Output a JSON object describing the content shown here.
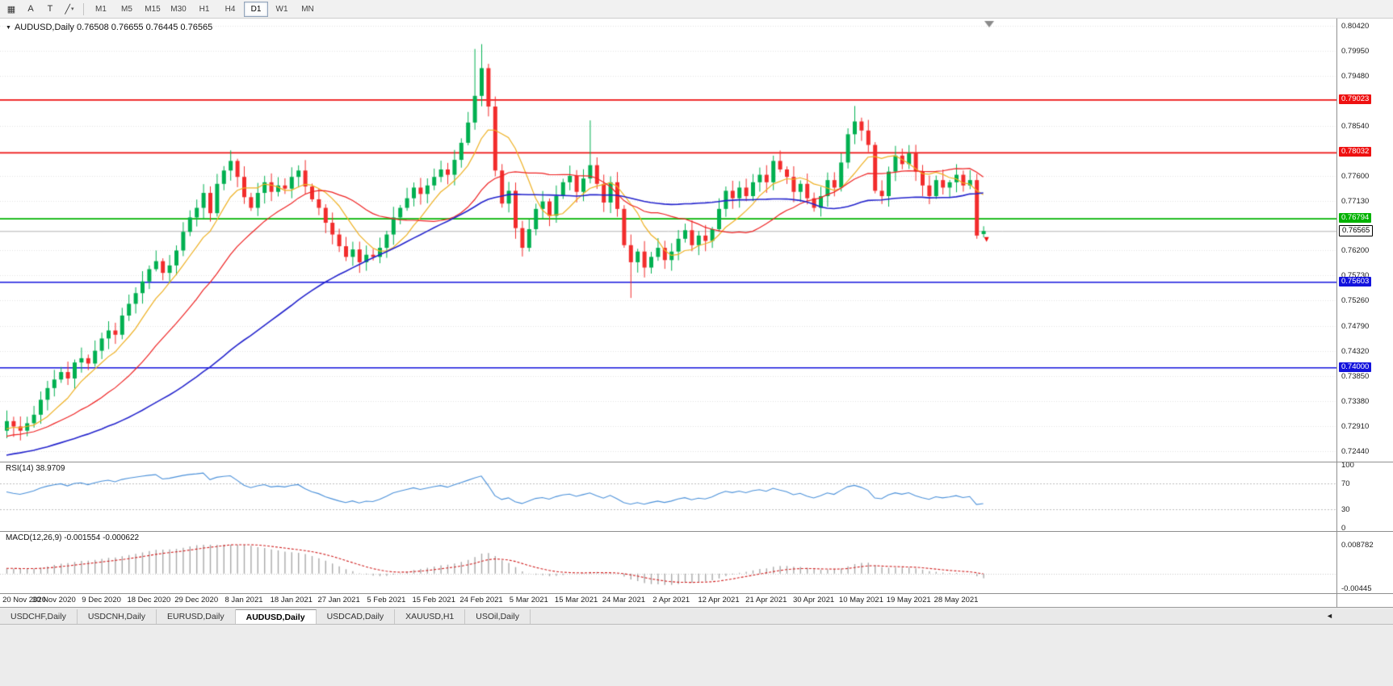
{
  "toolbar": {
    "tools": [
      {
        "name": "chart-grid-icon",
        "glyph": "▦"
      },
      {
        "name": "arrow-tool-button",
        "glyph": "A"
      },
      {
        "name": "text-tool-button",
        "glyph": "T"
      },
      {
        "name": "draw-tool-button",
        "glyph": "╱",
        "dropdown": "▾"
      }
    ],
    "timeframes": [
      {
        "label": "M1"
      },
      {
        "label": "M5"
      },
      {
        "label": "M15"
      },
      {
        "label": "M30"
      },
      {
        "label": "H1"
      },
      {
        "label": "H4"
      },
      {
        "label": "D1",
        "active": true
      },
      {
        "label": "W1"
      },
      {
        "label": "MN"
      }
    ]
  },
  "chart": {
    "title": {
      "collapse_glyph": "▼",
      "symbol": "AUDUSD,Daily",
      "ohlc": "0.76508 0.76655 0.76445 0.76565"
    }
  },
  "rsi": {
    "label_text": "RSI(14) 38.9709",
    "axis": [
      "100",
      "70",
      "30",
      "0"
    ]
  },
  "macd": {
    "label_text": "MACD(12,26,9) -0.001554 -0.000622",
    "axis_top": "0.008782",
    "axis_bottom": "-0.00445"
  },
  "tabs": [
    {
      "label": "USDCHF,Daily"
    },
    {
      "label": "USDCNH,Daily"
    },
    {
      "label": "EURUSD,Daily"
    },
    {
      "label": "AUDUSD,Daily",
      "active": true
    },
    {
      "label": "USDCAD,Daily"
    },
    {
      "label": "XAUUSD,H1"
    },
    {
      "label": "USOil,Daily"
    }
  ],
  "ui": {
    "tab_scroll_glyph": "◄"
  },
  "chart_data": {
    "type": "candlestick",
    "symbol": "AUDUSD",
    "timeframe": "Daily",
    "title": "AUDUSD,Daily 0.76508 0.76655 0.76445 0.76565",
    "price_max": 0.8055,
    "price_min": 0.7224,
    "grid_ticks": [
      0.8042,
      0.7995,
      0.7948,
      0.7854,
      0.776,
      0.7713,
      0.762,
      0.7573,
      0.7526,
      0.7479,
      0.7432,
      0.7385,
      0.7338,
      0.7291,
      0.7244
    ],
    "x_labels": [
      "20 Nov 2020",
      "30 Nov 2020",
      "9 Dec 2020",
      "18 Dec 2020",
      "29 Dec 2020",
      "8 Jan 2021",
      "18 Jan 2021",
      "27 Jan 2021",
      "5 Feb 2021",
      "15 Feb 2021",
      "24 Feb 2021",
      "5 Mar 2021",
      "15 Mar 2021",
      "24 Mar 2021",
      "2 Apr 2021",
      "12 Apr 2021",
      "21 Apr 2021",
      "30 Apr 2021",
      "10 May 2021",
      "19 May 2021",
      "28 May 2021"
    ],
    "label_every": 7,
    "closes": [
      0.73,
      0.729,
      0.7282,
      0.7296,
      0.7312,
      0.734,
      0.7362,
      0.7378,
      0.7392,
      0.738,
      0.741,
      0.7418,
      0.7408,
      0.7432,
      0.7455,
      0.747,
      0.7462,
      0.7498,
      0.752,
      0.754,
      0.7562,
      0.7585,
      0.76,
      0.7578,
      0.7592,
      0.762,
      0.7655,
      0.7682,
      0.77,
      0.7728,
      0.769,
      0.7745,
      0.777,
      0.7788,
      0.7758,
      0.772,
      0.77,
      0.7728,
      0.7748,
      0.773,
      0.7742,
      0.7736,
      0.7758,
      0.777,
      0.774,
      0.7716,
      0.77,
      0.7672,
      0.765,
      0.7628,
      0.7608,
      0.7622,
      0.7598,
      0.7612,
      0.7608,
      0.7625,
      0.765,
      0.7682,
      0.77,
      0.7718,
      0.7738,
      0.7726,
      0.7742,
      0.7758,
      0.7772,
      0.7762,
      0.779,
      0.7822,
      0.786,
      0.791,
      0.7962,
      0.789,
      0.777,
      0.7708,
      0.7732,
      0.7662,
      0.7625,
      0.766,
      0.7698,
      0.7712,
      0.7685,
      0.7722,
      0.7748,
      0.776,
      0.773,
      0.7755,
      0.778,
      0.7745,
      0.771,
      0.7748,
      0.7698,
      0.763,
      0.7598,
      0.7618,
      0.7588,
      0.7608,
      0.7625,
      0.7602,
      0.7618,
      0.7642,
      0.7658,
      0.763,
      0.7648,
      0.7638,
      0.766,
      0.7698,
      0.7732,
      0.7718,
      0.7738,
      0.7722,
      0.7748,
      0.7762,
      0.7748,
      0.7788,
      0.7772,
      0.7758,
      0.773,
      0.7745,
      0.7718,
      0.77,
      0.7722,
      0.7752,
      0.7738,
      0.7785,
      0.7838,
      0.7862,
      0.7845,
      0.7818,
      0.7732,
      0.7722,
      0.7768,
      0.7798,
      0.7782,
      0.7802,
      0.7768,
      0.7742,
      0.7722,
      0.7752,
      0.7738,
      0.7748,
      0.7762,
      0.7742,
      0.7752,
      0.7648,
      0.76565
    ],
    "candle_overrides": {
      "69": {
        "high": 0.7998
      },
      "70": {
        "high": 0.8007
      },
      "86": {
        "high": 0.7864
      },
      "92": {
        "low": 0.7531
      },
      "125": {
        "high": 0.7891
      },
      "143": {
        "low": 0.7642
      },
      "144": {
        "open": 0.76508,
        "high": 0.76655,
        "low": 0.76445
      }
    },
    "preroll": {
      "start": 0.7152,
      "end": 0.7292,
      "count": 60,
      "noise": 0.001
    },
    "moving_averages": [
      {
        "period": 8,
        "color": "#eeb022",
        "width": 1.2
      },
      {
        "period": 20,
        "color": "#ee2222",
        "width": 1.2
      },
      {
        "period": 50,
        "color": "#2323cc",
        "width": 1.6
      }
    ],
    "hlines": [
      {
        "price": 0.79023,
        "color": "#ee1111",
        "width": 1.6
      },
      {
        "price": 0.78032,
        "color": "#ee1111",
        "width": 1.6
      },
      {
        "price": 0.76794,
        "color": "#00b200",
        "width": 1.6
      },
      {
        "price": 0.75603,
        "color": "#1313dd",
        "width": 1.6
      },
      {
        "price": 0.74,
        "color": "#1313dd",
        "width": 1.6
      }
    ],
    "current_price": 0.76565,
    "colors": {
      "bull": "#00b050",
      "bear": "#f22c2c",
      "grid": "#e2e2e2",
      "current_line": "#b4b4b4",
      "shift_marker": "#8a8a8a"
    },
    "indicators": {
      "rsi": {
        "period": 14,
        "value": 38.9709,
        "levels": [
          70,
          30
        ],
        "scale": [
          0,
          100
        ],
        "color": "#4a90d9"
      },
      "macd": {
        "fast": 12,
        "slow": 26,
        "signal": 9,
        "values": [
          -0.001554,
          -0.000622
        ],
        "scale_min": -0.00445,
        "scale_max": 0.008782,
        "hist_color": "#a9a9a9",
        "signal_color": "#d02020"
      }
    },
    "marker": {
      "type": "sell-arrow",
      "price": 0.7636,
      "color": "#ee1111"
    }
  }
}
